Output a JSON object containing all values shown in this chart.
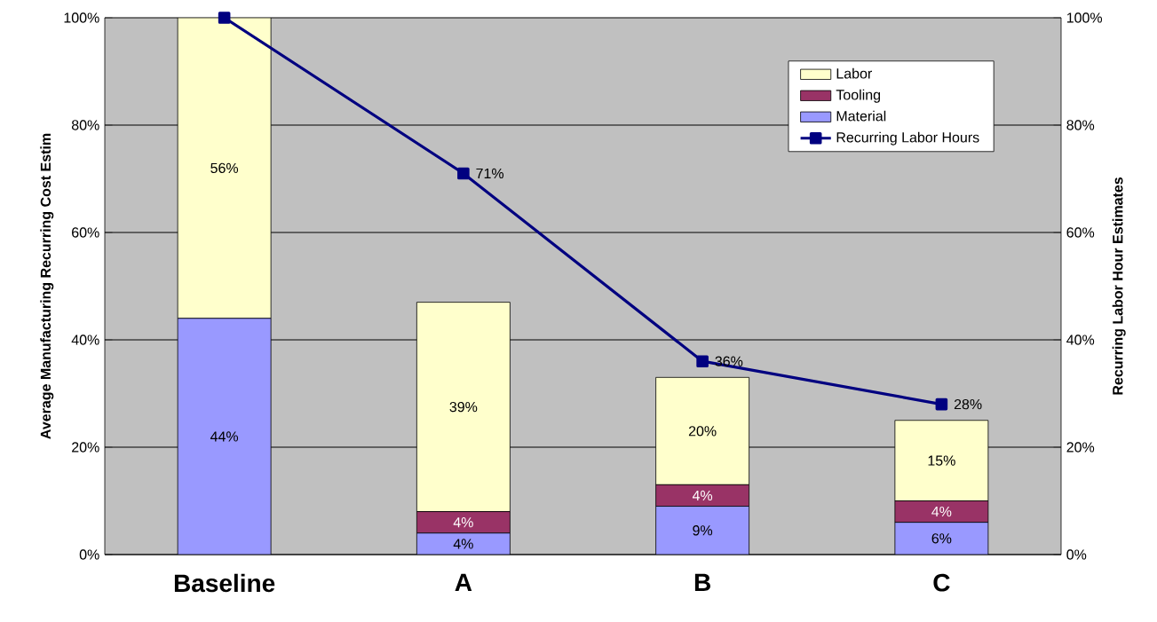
{
  "chart_data": {
    "type": "bar",
    "stacked": true,
    "categories": [
      "Baseline",
      "A",
      "B",
      "C"
    ],
    "ylabel": "Average Manufacturing Recurring Cost Estim",
    "y2label": "Recurring Labor Hour Estimates",
    "ylim": [
      0,
      100
    ],
    "yticks": [
      {
        "value": 0,
        "label": "0%"
      },
      {
        "value": 20,
        "label": "20%"
      },
      {
        "value": 40,
        "label": "40%"
      },
      {
        "value": 60,
        "label": "60%"
      },
      {
        "value": 80,
        "label": "80%"
      },
      {
        "value": 100,
        "label": "100%"
      }
    ],
    "y2lim": [
      0,
      100
    ],
    "y2ticks": [
      {
        "value": 0,
        "label": "0%"
      },
      {
        "value": 20,
        "label": "20%"
      },
      {
        "value": 40,
        "label": "40%"
      },
      {
        "value": 60,
        "label": "60%"
      },
      {
        "value": 80,
        "label": "80%"
      },
      {
        "value": 100,
        "label": "100%"
      }
    ],
    "grid": "y",
    "legend": "top right",
    "series": [
      {
        "name": "Material",
        "color": "#9999ff",
        "values": [
          44,
          4,
          9,
          6
        ],
        "value_labels": [
          "44%",
          "4%",
          "9%",
          "6%"
        ]
      },
      {
        "name": "Tooling",
        "color": "#993366",
        "values": [
          0,
          4,
          4,
          4
        ],
        "value_labels": [
          null,
          "4%",
          "4%",
          "4%"
        ]
      },
      {
        "name": "Labor",
        "color": "#ffffcc",
        "values": [
          56,
          39,
          20,
          15
        ],
        "value_labels": [
          "56%",
          "39%",
          "20%",
          "15%"
        ]
      },
      {
        "name": "Recurring Labor Hours",
        "type": "line",
        "axis": "y2",
        "marker": "square",
        "color": "#000080",
        "values": [
          100,
          71,
          36,
          28
        ],
        "value_labels": [
          null,
          "71%",
          "36%",
          "28%"
        ]
      }
    ]
  }
}
